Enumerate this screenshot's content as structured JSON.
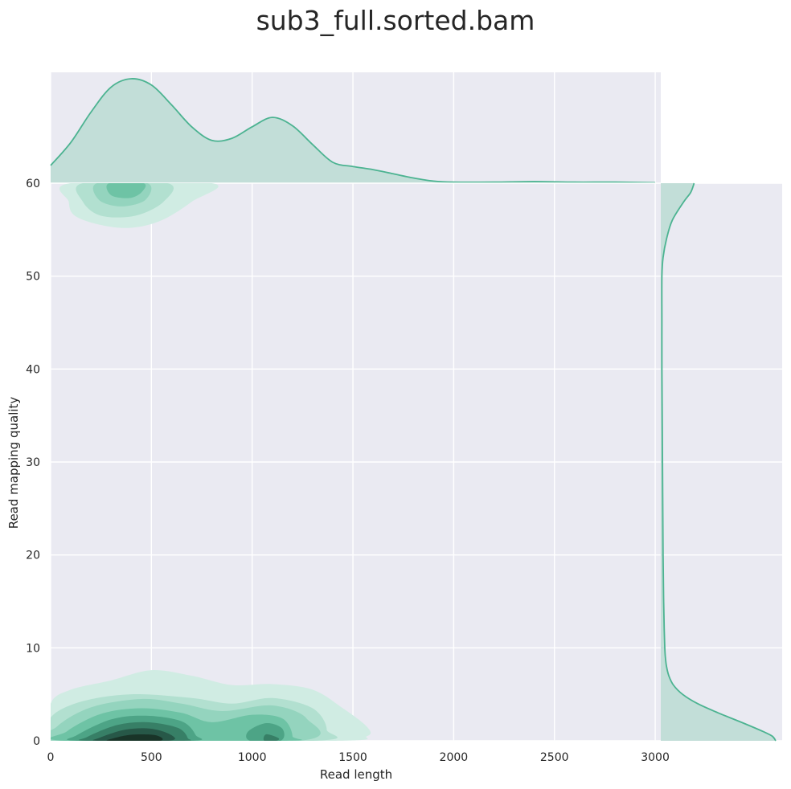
{
  "chart_data": {
    "type": "kde_joint",
    "title": "sub3_full.sorted.bam",
    "xlabel": "Read length",
    "ylabel": "Read mapping quality",
    "xlim": [
      0,
      3630
    ],
    "ylim": [
      0,
      60
    ],
    "xticks": [
      0,
      500,
      1000,
      1500,
      2000,
      2500,
      3000
    ],
    "yticks": [
      0,
      10,
      20,
      30,
      40,
      50,
      60
    ],
    "grid": true,
    "colors": {
      "background": "#EAEAF2",
      "grid": "#FFFFFF",
      "line": "#4CB391",
      "marginal_fill": "#C2DED8",
      "levels": [
        "#D0ECE3",
        "#B2E0D0",
        "#94D4BE",
        "#6EC3A5",
        "#4DA486",
        "#377F66",
        "#275848",
        "#193428"
      ]
    },
    "marginal_x": {
      "x": [
        0,
        100,
        200,
        300,
        400,
        500,
        600,
        700,
        800,
        900,
        1000,
        1100,
        1200,
        1300,
        1400,
        1500,
        1600,
        1700,
        1800,
        1900,
        2000,
        2200,
        2400,
        2600,
        2800,
        3000
      ],
      "density": [
        0.17,
        0.39,
        0.68,
        0.92,
        1.0,
        0.94,
        0.75,
        0.54,
        0.41,
        0.43,
        0.54,
        0.63,
        0.55,
        0.37,
        0.2,
        0.16,
        0.13,
        0.09,
        0.05,
        0.02,
        0.01,
        0.01,
        0.015,
        0.01,
        0.01,
        0.005
      ]
    },
    "marginal_y": {
      "y": [
        0,
        0.5,
        1,
        2,
        3,
        4,
        5,
        6,
        7,
        8,
        9,
        10,
        12,
        15,
        20,
        30,
        40,
        45,
        50,
        52,
        54,
        56,
        58,
        59,
        60
      ],
      "density": [
        1.0,
        0.97,
        0.89,
        0.7,
        0.5,
        0.32,
        0.19,
        0.11,
        0.07,
        0.05,
        0.04,
        0.035,
        0.03,
        0.025,
        0.02,
        0.015,
        0.01,
        0.01,
        0.01,
        0.02,
        0.05,
        0.1,
        0.2,
        0.26,
        0.29
      ]
    },
    "contours": [
      {
        "level": 1,
        "polygon": [
          [
            0,
            4
          ],
          [
            100,
            5.5
          ],
          [
            300,
            6.5
          ],
          [
            500,
            7.6
          ],
          [
            700,
            7
          ],
          [
            900,
            6
          ],
          [
            1100,
            6.1
          ],
          [
            1300,
            5.5
          ],
          [
            1450,
            3.5
          ],
          [
            1570,
            1.5
          ],
          [
            1570,
            0.5
          ],
          [
            1400,
            0
          ],
          [
            0,
            0
          ]
        ]
      },
      {
        "level": 1,
        "polygon": [
          [
            100,
            60
          ],
          [
            90,
            58
          ],
          [
            120,
            56.5
          ],
          [
            250,
            55.5
          ],
          [
            400,
            55.2
          ],
          [
            550,
            56
          ],
          [
            700,
            58
          ],
          [
            800,
            60
          ]
        ]
      },
      {
        "level": 2,
        "polygon": [
          [
            0,
            2.5
          ],
          [
            150,
            4.2
          ],
          [
            400,
            5
          ],
          [
            700,
            4.6
          ],
          [
            900,
            4
          ],
          [
            1100,
            4.6
          ],
          [
            1300,
            3.5
          ],
          [
            1370,
            1.2
          ],
          [
            1300,
            0
          ],
          [
            0,
            0
          ]
        ]
      },
      {
        "level": 2,
        "polygon": [
          [
            160,
            60
          ],
          [
            160,
            58
          ],
          [
            250,
            56.5
          ],
          [
            420,
            56.5
          ],
          [
            560,
            58
          ],
          [
            580,
            60
          ]
        ]
      },
      {
        "level": 3,
        "polygon": [
          [
            30,
            1.5
          ],
          [
            200,
            3.6
          ],
          [
            450,
            4.5
          ],
          [
            650,
            4
          ],
          [
            850,
            3.2
          ],
          [
            1100,
            3.8
          ],
          [
            1270,
            2.4
          ],
          [
            1230,
            0
          ],
          [
            30,
            0
          ]
        ]
      },
      {
        "level": 3,
        "polygon": [
          [
            230,
            60
          ],
          [
            240,
            58.2
          ],
          [
            350,
            57.5
          ],
          [
            470,
            58.2
          ],
          [
            480,
            60
          ]
        ]
      },
      {
        "level": 4,
        "polygon": [
          [
            80,
            1
          ],
          [
            250,
            2.9
          ],
          [
            450,
            3.5
          ],
          [
            650,
            3
          ],
          [
            800,
            2
          ],
          [
            1000,
            2.8
          ],
          [
            1150,
            2.4
          ],
          [
            1200,
            0.5
          ],
          [
            1150,
            0
          ],
          [
            80,
            0
          ]
        ]
      },
      {
        "level": 4,
        "polygon": [
          [
            290,
            60
          ],
          [
            300,
            58.7
          ],
          [
            390,
            58.4
          ],
          [
            450,
            59
          ],
          [
            460,
            60
          ]
        ]
      },
      {
        "level": 5,
        "polygon": [
          [
            130,
            0.6
          ],
          [
            300,
            2.3
          ],
          [
            470,
            2.7
          ],
          [
            650,
            2.1
          ],
          [
            720,
            0.6
          ],
          [
            700,
            0
          ],
          [
            130,
            0
          ]
        ]
      },
      {
        "level": 5,
        "polygon": [
          [
            990,
            0
          ],
          [
            980,
            1
          ],
          [
            1070,
            1.9
          ],
          [
            1150,
            1.3
          ],
          [
            1140,
            0
          ]
        ]
      },
      {
        "level": 6,
        "polygon": [
          [
            180,
            0.4
          ],
          [
            330,
            1.7
          ],
          [
            480,
            2
          ],
          [
            630,
            1.4
          ],
          [
            680,
            0.3
          ],
          [
            650,
            0
          ],
          [
            180,
            0
          ]
        ]
      },
      {
        "level": 6,
        "polygon": [
          [
            1060,
            0
          ],
          [
            1070,
            0.7
          ],
          [
            1130,
            0.3
          ],
          [
            1120,
            0
          ]
        ]
      },
      {
        "level": 7,
        "polygon": [
          [
            240,
            0.3
          ],
          [
            370,
            1.2
          ],
          [
            500,
            1.3
          ],
          [
            600,
            0.6
          ],
          [
            580,
            0
          ],
          [
            240,
            0
          ]
        ]
      },
      {
        "level": 8,
        "polygon": [
          [
            300,
            0.2
          ],
          [
            400,
            0.65
          ],
          [
            520,
            0.6
          ],
          [
            540,
            0
          ],
          [
            300,
            0
          ]
        ]
      }
    ]
  }
}
